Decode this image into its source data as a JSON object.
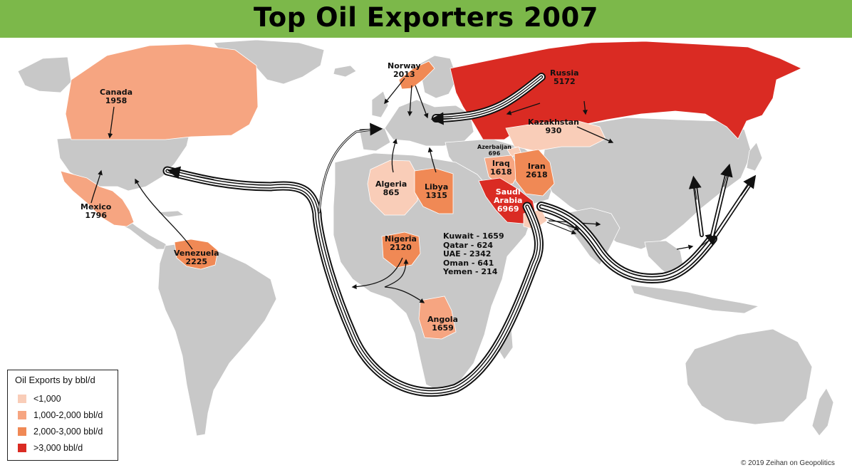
{
  "title": "Top Oil Exporters 2007",
  "colors": {
    "header": "#7cb84a",
    "land": "#c8c8c8",
    "tier_lt1000": "#f9cdb8",
    "tier_1000_2000": "#f6a581",
    "tier_2000_3000": "#f08955",
    "tier_gt3000": "#da2b23",
    "flow": "#111111"
  },
  "legend": {
    "title": "Oil Exports by bbl/d",
    "items": [
      {
        "label": "<1,000",
        "color": "#f9cdb8"
      },
      {
        "label": "1,000-2,000 bbl/d",
        "color": "#f6a581"
      },
      {
        "label": "2,000-3,000 bbl/d",
        "color": "#f08955"
      },
      {
        "label": ">3,000 bbl/d",
        "color": "#da2b23"
      }
    ]
  },
  "exporters": [
    {
      "name": "Canada",
      "value": "1958",
      "tier": "1,000-2,000 bbl/d"
    },
    {
      "name": "Mexico",
      "value": "1796",
      "tier": "1,000-2,000 bbl/d"
    },
    {
      "name": "Venezuela",
      "value": "2225",
      "tier": "2,000-3,000 bbl/d"
    },
    {
      "name": "Norway",
      "value": "2013",
      "tier": "2,000-3,000 bbl/d"
    },
    {
      "name": "Russia",
      "value": "5172",
      "tier": ">3,000 bbl/d"
    },
    {
      "name": "Kazakhstan",
      "value": "930",
      "tier": "<1,000"
    },
    {
      "name": "Azerbaijan",
      "value": "696",
      "tier": "<1,000"
    },
    {
      "name": "Iraq",
      "value": "1618",
      "tier": "1,000-2,000 bbl/d"
    },
    {
      "name": "Iran",
      "value": "2618",
      "tier": "2,000-3,000 bbl/d"
    },
    {
      "name": "Saudi Arabia",
      "value": "6969",
      "tier": ">3,000 bbl/d"
    },
    {
      "name": "Algeria",
      "value": "865",
      "tier": "<1,000"
    },
    {
      "name": "Libya",
      "value": "1315",
      "tier": "1,000-2,000 bbl/d"
    },
    {
      "name": "Nigeria",
      "value": "2120",
      "tier": "2,000-3,000 bbl/d"
    },
    {
      "name": "Angola",
      "value": "1659",
      "tier": "1,000-2,000 bbl/d"
    }
  ],
  "labels": {
    "canada": {
      "name": "Canada",
      "value": "1958"
    },
    "mexico": {
      "name": "Mexico",
      "value": "1796"
    },
    "venezuela": {
      "name": "Venezuela",
      "value": "2225"
    },
    "norway": {
      "name": "Norway",
      "value": "2013"
    },
    "russia": {
      "name": "Russia",
      "value": "5172"
    },
    "kazakhstan": {
      "name": "Kazakhstan",
      "value": "930"
    },
    "azerbaijan": {
      "name": "Azerbaijan",
      "value": "696"
    },
    "iraq": {
      "name": "Iraq",
      "value": "1618"
    },
    "iran": {
      "name": "Iran",
      "value": "2618"
    },
    "saudi": {
      "name1": "Saudi",
      "name2": "Arabia",
      "value": "6969"
    },
    "algeria": {
      "name": "Algeria",
      "value": "865"
    },
    "libya": {
      "name": "Libya",
      "value": "1315"
    },
    "nigeria": {
      "name": "Nigeria",
      "value": "2120"
    },
    "angola": {
      "name": "Angola",
      "value": "1659"
    }
  },
  "gulf_list": [
    "Kuwait - 1659",
    "Qatar - 624",
    "UAE - 2342",
    "Oman - 641",
    "Yemen - 214"
  ],
  "copyright": "© 2019 Zeihan on Geopolitics"
}
